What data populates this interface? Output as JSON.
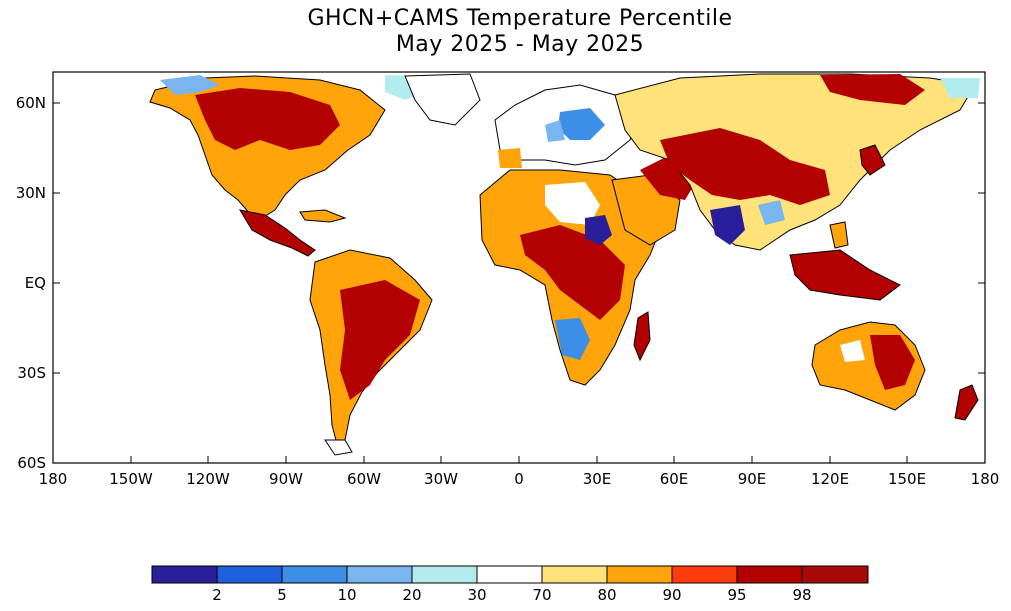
{
  "title": {
    "line1": "GHCN+CAMS Temperature Percentile",
    "line2": "May 2025 - May 2025"
  },
  "map": {
    "lat_labels": [
      "60N",
      "30N",
      "EQ",
      "30S",
      "60S"
    ],
    "lon_labels": [
      "180",
      "150W",
      "120W",
      "90W",
      "60W",
      "30W",
      "0",
      "30E",
      "60E",
      "90E",
      "120E",
      "150E",
      "180"
    ]
  },
  "colorbar": {
    "labels": [
      "2",
      "5",
      "10",
      "20",
      "30",
      "70",
      "80",
      "90",
      "95",
      "98"
    ],
    "colors": [
      "#2a1f9b",
      "#1f5fdc",
      "#3d8ee6",
      "#79b5ef",
      "#b2ecee",
      "#ffffff",
      "#ffe27a",
      "#ffa40a",
      "#ff3c10",
      "#b30000",
      "#a80a0a"
    ]
  }
}
